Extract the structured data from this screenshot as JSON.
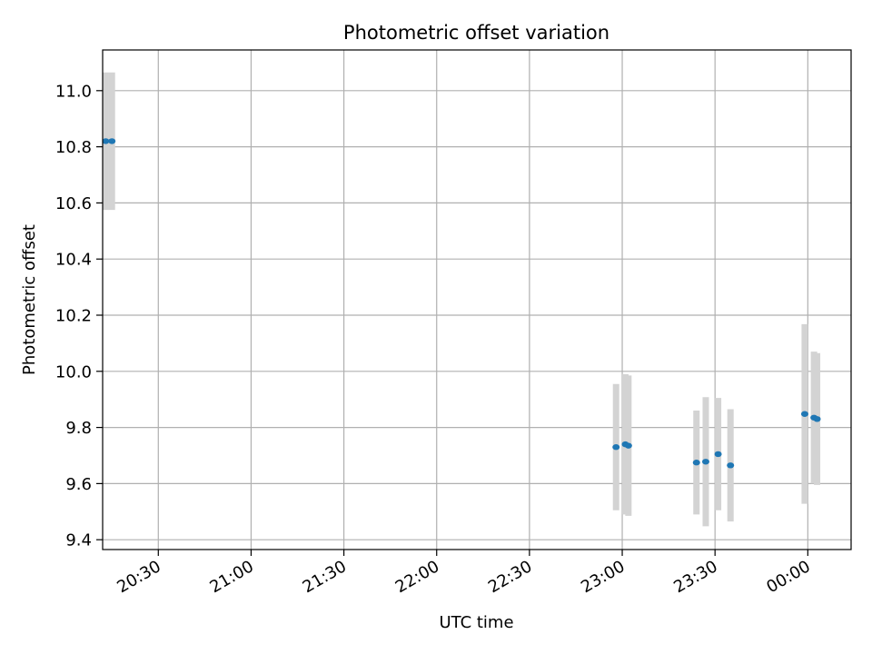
{
  "chart_data": {
    "type": "scatter",
    "title": "Photometric offset variation",
    "xlabel": "UTC time",
    "ylabel": "Photometric offset",
    "grid": true,
    "marker_color": "#1f77b4",
    "errorbar_color": "#d3d3d3",
    "x_ticks": [
      "20:30",
      "21:00",
      "21:30",
      "22:00",
      "22:30",
      "23:00",
      "23:30",
      "00:00"
    ],
    "y_ticks": [
      "9.4",
      "9.6",
      "9.8",
      "10.0",
      "10.2",
      "10.4",
      "10.6",
      "10.8",
      "11.0"
    ],
    "xlim": [
      "20:12",
      "00:14"
    ],
    "ylim": [
      9.365,
      11.145
    ],
    "points": [
      {
        "x": "20:13",
        "y": 10.82,
        "err": 0.245
      },
      {
        "x": "20:15",
        "y": 10.82,
        "err": 0.245
      },
      {
        "x": "22:58",
        "y": 9.73,
        "err": 0.225
      },
      {
        "x": "23:01",
        "y": 9.74,
        "err": 0.25
      },
      {
        "x": "23:02",
        "y": 9.735,
        "err": 0.25
      },
      {
        "x": "23:24",
        "y": 9.675,
        "err": 0.185
      },
      {
        "x": "23:27",
        "y": 9.678,
        "err": 0.23
      },
      {
        "x": "23:31",
        "y": 9.705,
        "err": 0.2
      },
      {
        "x": "23:35",
        "y": 9.665,
        "err": 0.2
      },
      {
        "x": "23:59",
        "y": 9.848,
        "err": 0.32
      },
      {
        "x": "00:02",
        "y": 9.835,
        "err": 0.235
      },
      {
        "x": "00:03",
        "y": 9.83,
        "err": 0.235
      }
    ]
  }
}
